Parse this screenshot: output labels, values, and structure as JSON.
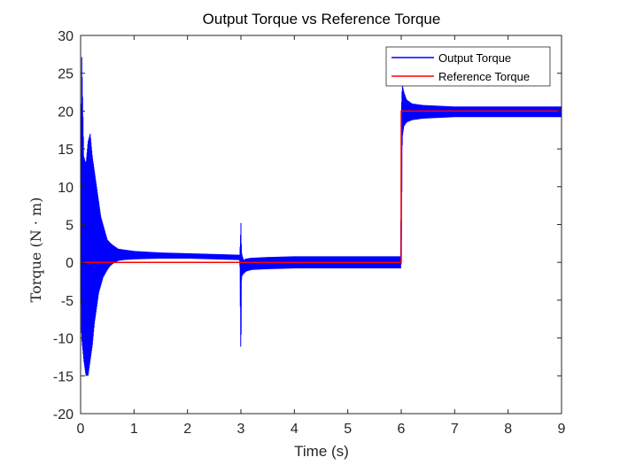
{
  "chart_data": {
    "type": "line",
    "title": "Output Torque vs Reference Torque",
    "xlabel": "Time (s)",
    "ylabel": "Torque (N · m)",
    "xlim": [
      0,
      9
    ],
    "ylim": [
      -20,
      30
    ],
    "xticks": [
      "0",
      "1",
      "2",
      "3",
      "4",
      "5",
      "6",
      "7",
      "8",
      "9"
    ],
    "yticks": [
      "-20",
      "-15",
      "-10",
      "-5",
      "0",
      "5",
      "10",
      "15",
      "20",
      "25",
      "30"
    ],
    "grid": false,
    "legend_location": "top-right",
    "series": [
      {
        "name": "Output Torque",
        "color": "#0000ff",
        "x": [
          0,
          0.02,
          0.06,
          0.1,
          0.14,
          0.18,
          0.22,
          0.26,
          0.3,
          0.34,
          0.38,
          0.42,
          0.46,
          0.5,
          0.55,
          0.6,
          0.7,
          0.8,
          1.0,
          1.5,
          2.0,
          2.5,
          2.98,
          3.0,
          3.01,
          3.02,
          3.05,
          3.1,
          3.2,
          3.5,
          4.0,
          5.0,
          5.99,
          6.0,
          6.02,
          6.05,
          6.1,
          6.2,
          6.4,
          7.0,
          8.0,
          9.0
        ],
        "y_upper": [
          0,
          28,
          14,
          13,
          16,
          17,
          14,
          12,
          10,
          8,
          6,
          5,
          4,
          3,
          2.6,
          2.3,
          1.8,
          1.7,
          1.5,
          1.3,
          1.2,
          1.1,
          1.0,
          5.2,
          1.5,
          1.0,
          0.3,
          0.5,
          0.6,
          0.7,
          0.8,
          0.8,
          0.8,
          19.8,
          23.5,
          22.5,
          21.5,
          21.0,
          20.8,
          20.6,
          20.6,
          20.6
        ],
        "y_lower": [
          0,
          -10,
          -13,
          -15,
          -15,
          -13,
          -11,
          -8,
          -6,
          -4,
          -3,
          -2,
          -1.5,
          -1,
          -0.5,
          -0.2,
          0.2,
          0.3,
          0.4,
          0.5,
          0.5,
          0.4,
          0.3,
          -13.8,
          -2.5,
          -1.8,
          -1.5,
          -1.2,
          -1.0,
          -0.9,
          -0.8,
          -0.8,
          -0.8,
          0.0,
          16.5,
          18.0,
          18.5,
          18.8,
          19.0,
          19.2,
          19.2,
          19.2
        ]
      },
      {
        "name": "Reference Torque",
        "color": "#ff0000",
        "x": [
          0,
          6,
          6,
          9
        ],
        "y": [
          0,
          0,
          20,
          20
        ]
      }
    ]
  }
}
